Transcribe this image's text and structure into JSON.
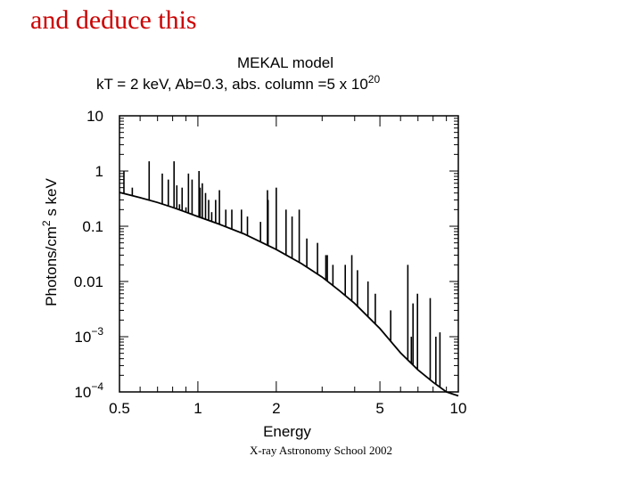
{
  "slide": {
    "title": "and deduce this",
    "footer": "X-ray Astronomy School 2002"
  },
  "chart_data": {
    "type": "line",
    "title": "MEKAL model",
    "subtitle_main": "kT = 2 keV, Ab=0.3, abs. column =5 x 10",
    "subtitle_exp": "20",
    "xlabel": "Energy",
    "ylabel_main": "Photons/cm",
    "ylabel_sup": "2",
    "ylabel_rest": " s keV",
    "x_scale": "log",
    "y_scale": "log",
    "xlim": [
      0.5,
      10
    ],
    "ylim": [
      0.0001,
      10
    ],
    "x_ticks": [
      {
        "value": 0.5,
        "label": "0.5"
      },
      {
        "value": 1,
        "label": "1"
      },
      {
        "value": 2,
        "label": "2"
      },
      {
        "value": 5,
        "label": "5"
      },
      {
        "value": 10,
        "label": "10"
      }
    ],
    "y_ticks": [
      {
        "value": 10,
        "mant": "10",
        "exp": ""
      },
      {
        "value": 1,
        "mant": "1",
        "exp": ""
      },
      {
        "value": 0.1,
        "mant": "0.1",
        "exp": ""
      },
      {
        "value": 0.01,
        "mant": "0.01",
        "exp": ""
      },
      {
        "value": 0.001,
        "mant": "10",
        "exp": "−3"
      },
      {
        "value": 0.0001,
        "mant": "10",
        "exp": "−4"
      }
    ],
    "continuum": {
      "x": [
        0.5,
        0.6,
        0.7,
        0.8,
        0.9,
        1.0,
        1.2,
        1.5,
        2.0,
        2.5,
        3.0,
        3.5,
        4.0,
        5.0,
        6.0,
        7.0,
        8.0,
        9.0,
        10.0
      ],
      "y": [
        0.41,
        0.33,
        0.27,
        0.22,
        0.18,
        0.15,
        0.11,
        0.073,
        0.038,
        0.021,
        0.012,
        0.0068,
        0.004,
        0.0014,
        0.00051,
        0.00025,
        0.00015,
        0.0001,
        8.5e-05
      ]
    },
    "lines": {
      "x": [
        0.52,
        0.56,
        0.65,
        0.73,
        0.77,
        0.81,
        0.83,
        0.85,
        0.87,
        0.9,
        0.92,
        0.95,
        1.01,
        1.02,
        1.04,
        1.07,
        1.1,
        1.13,
        1.17,
        1.21,
        1.28,
        1.35,
        1.47,
        1.55,
        1.74,
        1.85,
        1.86,
        2.0,
        2.18,
        2.3,
        2.45,
        2.62,
        2.88,
        3.1,
        3.14,
        3.3,
        3.68,
        3.9,
        4.1,
        4.5,
        4.8,
        5.5,
        6.4,
        6.6,
        6.7,
        6.97,
        7.8,
        8.2,
        8.5
      ],
      "y": [
        1.0,
        0.5,
        1.5,
        0.9,
        0.7,
        1.5,
        0.55,
        0.25,
        0.5,
        0.22,
        0.9,
        0.7,
        1.0,
        0.5,
        0.6,
        0.4,
        0.3,
        0.18,
        0.3,
        0.45,
        0.2,
        0.2,
        0.2,
        0.15,
        0.12,
        0.45,
        0.3,
        0.5,
        0.2,
        0.15,
        0.2,
        0.06,
        0.05,
        0.03,
        0.03,
        0.02,
        0.02,
        0.03,
        0.016,
        0.01,
        0.006,
        0.003,
        0.02,
        0.001,
        0.004,
        0.006,
        0.005,
        0.001,
        0.0012
      ]
    }
  }
}
